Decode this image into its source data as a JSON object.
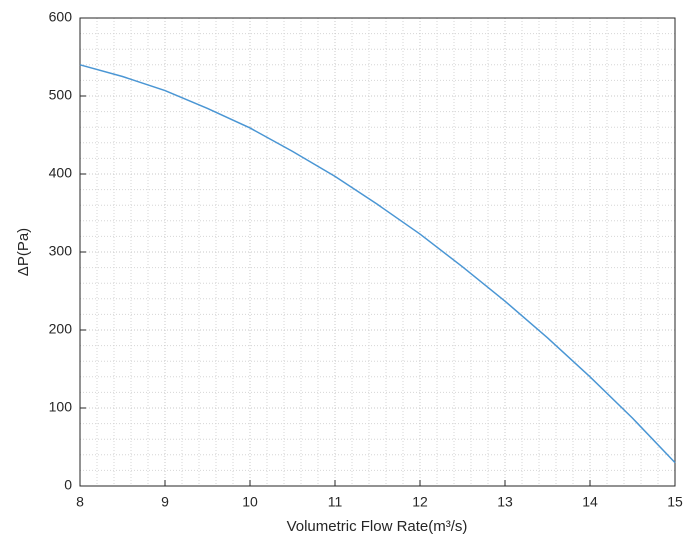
{
  "chart_data": {
    "type": "line",
    "xlabel": "Volumetric Flow Rate(m³/s)",
    "ylabel": "ΔP(Pa)",
    "x": [
      8,
      8.5,
      9,
      9.5,
      10,
      10.5,
      11,
      11.5,
      12,
      12.5,
      13,
      13.5,
      14,
      14.5,
      15
    ],
    "series": [
      {
        "color": "#4a96d4",
        "values": [
          540,
          525,
          507,
          484,
          459,
          429,
          397,
          361,
          323,
          281,
          237,
          190,
          140,
          87,
          30
        ]
      }
    ],
    "xlim": [
      8,
      15
    ],
    "xticks": [
      8,
      9,
      10,
      11,
      12,
      13,
      14,
      15
    ],
    "ylim": [
      0,
      600
    ],
    "yticks": [
      0,
      100,
      200,
      300,
      400,
      500,
      600
    ],
    "grid": true,
    "minor_grid": true,
    "minor_subdivisions": 5
  }
}
